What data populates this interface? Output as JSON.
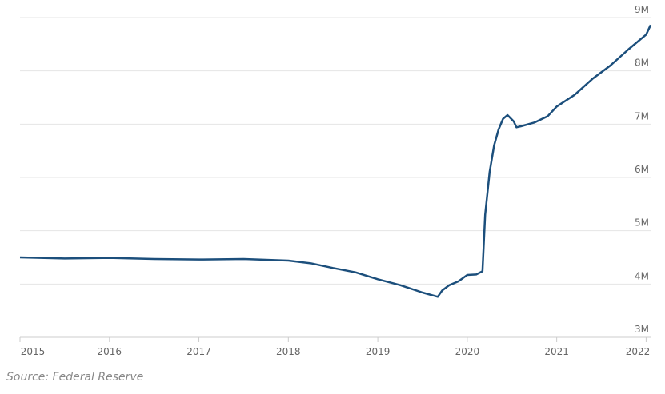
{
  "chart_data": {
    "type": "line",
    "x": [
      2015.0,
      2015.5,
      2016.0,
      2016.5,
      2017.0,
      2017.5,
      2018.0,
      2018.25,
      2018.5,
      2018.75,
      2019.0,
      2019.25,
      2019.5,
      2019.67,
      2019.72,
      2019.8,
      2019.9,
      2020.0,
      2020.1,
      2020.17,
      2020.2,
      2020.25,
      2020.3,
      2020.35,
      2020.4,
      2020.45,
      2020.52,
      2020.55,
      2020.6,
      2020.75,
      2020.9,
      2021.0,
      2021.2,
      2021.4,
      2021.6,
      2021.8,
      2022.0,
      2022.05
    ],
    "series": [
      {
        "color": "#1c4f7c",
        "values": [
          4.5,
          4.48,
          4.49,
          4.47,
          4.46,
          4.47,
          4.44,
          4.39,
          4.3,
          4.22,
          4.09,
          3.98,
          3.84,
          3.76,
          3.88,
          3.98,
          4.05,
          4.17,
          4.18,
          4.24,
          5.3,
          6.1,
          6.6,
          6.9,
          7.1,
          7.17,
          7.05,
          6.94,
          6.96,
          7.03,
          7.15,
          7.33,
          7.55,
          7.85,
          8.1,
          8.4,
          8.68,
          8.86
        ]
      }
    ],
    "xlim": [
      2015,
      2022.05
    ],
    "xticks": [
      2015,
      2016,
      2017,
      2018,
      2019,
      2020,
      2021,
      2022
    ],
    "ylim": [
      3,
      9
    ],
    "yticks": [
      {
        "value": 3,
        "label": "3M"
      },
      {
        "value": 4,
        "label": "4M"
      },
      {
        "value": 5,
        "label": "5M"
      },
      {
        "value": 6,
        "label": "6M"
      },
      {
        "value": 7,
        "label": "7M"
      },
      {
        "value": 8,
        "label": "8M"
      },
      {
        "value": 9,
        "label": "9M"
      }
    ],
    "grid": true,
    "source": "Source: Federal Reserve"
  }
}
